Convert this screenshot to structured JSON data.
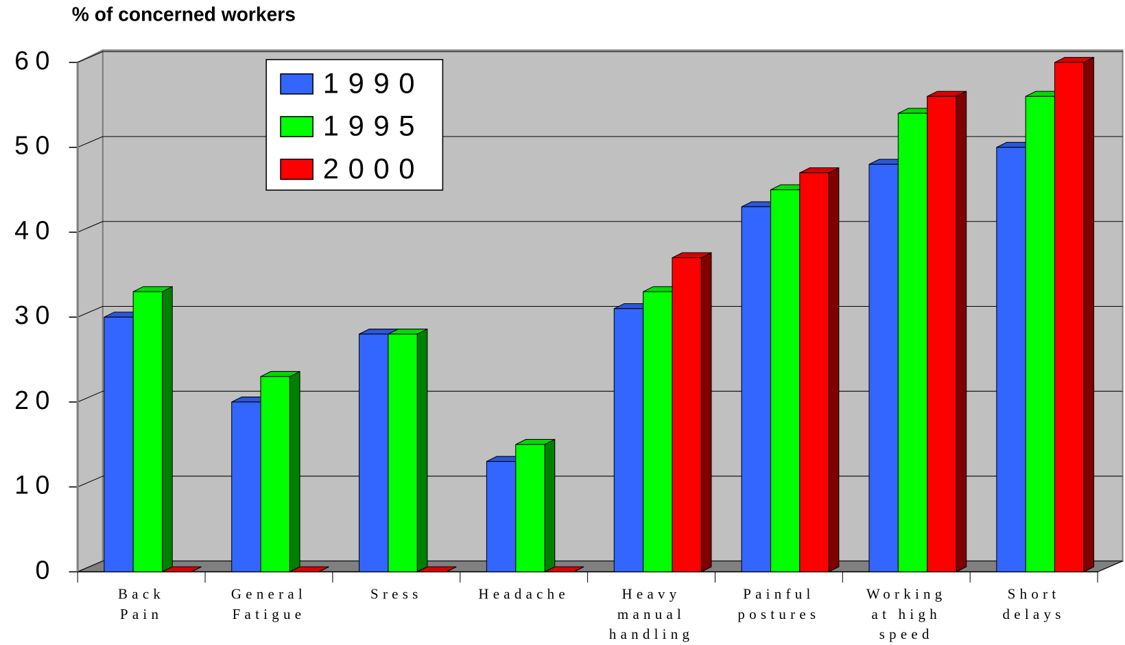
{
  "chart_data": {
    "type": "bar",
    "title": "% of concerned workers",
    "categories": [
      [
        "Back",
        "Pain"
      ],
      [
        "General",
        "Fatigue"
      ],
      [
        "Sress"
      ],
      [
        "Headache"
      ],
      [
        "Heavy",
        "manual",
        "handling"
      ],
      [
        "Painful",
        "postures"
      ],
      [
        "Working",
        "at high",
        "speed"
      ],
      [
        "Short",
        "delays"
      ]
    ],
    "series": [
      {
        "name": "1990",
        "color": "#3366ff",
        "values": [
          30,
          20,
          28,
          13,
          31,
          43,
          48,
          50
        ]
      },
      {
        "name": "1995",
        "color": "#00ff00",
        "values": [
          33,
          23,
          28,
          15,
          33,
          45,
          54,
          56
        ]
      },
      {
        "name": "2000",
        "color": "#ff0000",
        "values": [
          0,
          0,
          0,
          0,
          37,
          47,
          56,
          60
        ]
      }
    ],
    "ylim": [
      0,
      60
    ],
    "yticks": [
      0,
      10,
      20,
      30,
      40,
      50,
      60
    ],
    "grid": true,
    "legend": "top-left"
  }
}
